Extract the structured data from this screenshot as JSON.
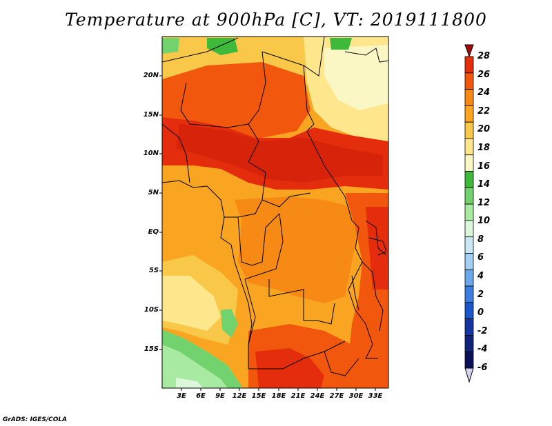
{
  "title": "Temperature at 900hPa [C], VT: 2019111800",
  "credit": "GrADS: IGES/COLA",
  "map": {
    "lon_range": [
      0,
      35
    ],
    "lat_range": [
      -20,
      24
    ],
    "lat_labels": [
      "20N",
      "15N",
      "10N",
      "5N",
      "EQ",
      "5S",
      "10S",
      "15S"
    ],
    "lon_labels": [
      "3E",
      "6E",
      "9E",
      "12E",
      "15E",
      "18E",
      "21E",
      "24E",
      "27E",
      "30E",
      "33E"
    ]
  },
  "colorbar": {
    "labels": [
      "28",
      "26",
      "24",
      "22",
      "20",
      "18",
      "16",
      "14",
      "12",
      "10",
      "8",
      "6",
      "4",
      "2",
      "0",
      "-2",
      "-4",
      "-6"
    ],
    "colors": [
      "#a50a0a",
      "#e32d0c",
      "#f2580d",
      "#f68a14",
      "#f9a521",
      "#fac848",
      "#fde68b",
      "#fbf7c5",
      "#3fb93b",
      "#72d36e",
      "#a9eaa2",
      "#dcf6dc",
      "#cbe6f6",
      "#a2cff3",
      "#6ca7ec",
      "#3e7ddf",
      "#1d56c9",
      "#1535a0",
      "#11237a",
      "#0b1158",
      "#d4d4f2"
    ]
  }
}
